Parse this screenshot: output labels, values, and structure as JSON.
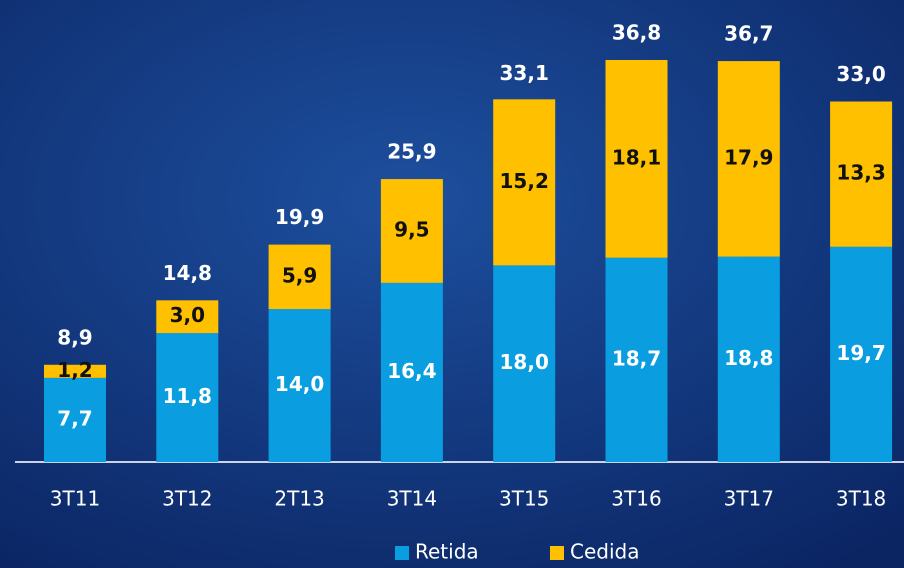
{
  "chart_data": {
    "type": "stacked_bar",
    "categories": [
      "3T11",
      "3T12",
      "2T13",
      "3T14",
      "3T15",
      "3T16",
      "3T17",
      "3T18"
    ],
    "series": [
      {
        "name": "Retida",
        "color": "#0a9ee0",
        "values": [
          7.7,
          11.8,
          14.0,
          16.4,
          18.0,
          18.7,
          18.8,
          19.7
        ],
        "value_labels": [
          "7,7",
          "11,8",
          "14,0",
          "16,4",
          "18,0",
          "18,7",
          "18,8",
          "19,7"
        ]
      },
      {
        "name": "Cedida",
        "color": "#ffc000",
        "values": [
          1.2,
          3.0,
          5.9,
          9.5,
          15.2,
          18.1,
          17.9,
          13.3
        ],
        "value_labels": [
          "1,2",
          "3,0",
          "5,9",
          "9,5",
          "15,2",
          "18,1",
          "17,9",
          "13,3"
        ]
      }
    ],
    "totals": [
      8.9,
      14.8,
      19.9,
      25.9,
      33.1,
      36.8,
      36.7,
      33.0
    ],
    "total_labels": [
      "8,9",
      "14,8",
      "19,9",
      "25,9",
      "33,1",
      "36,8",
      "36,7",
      "33,0"
    ],
    "legend": "bottom"
  }
}
